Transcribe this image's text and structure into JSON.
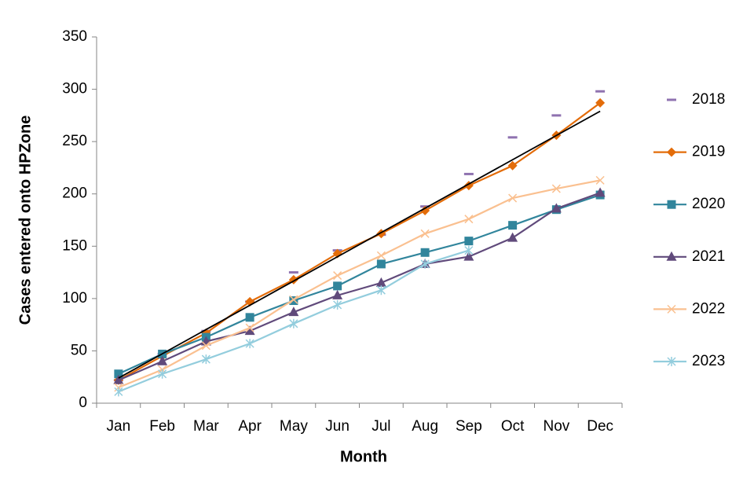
{
  "chart_data": {
    "type": "line",
    "x_label": "Month",
    "y_label": "Cases entered onto HPZone",
    "categories": [
      "Jan",
      "Feb",
      "Mar",
      "Apr",
      "May",
      "Jun",
      "Jul",
      "Aug",
      "Sep",
      "Oct",
      "Nov",
      "Dec"
    ],
    "ylim": [
      0,
      350
    ],
    "yticks": [
      0,
      50,
      100,
      150,
      200,
      250,
      300,
      350
    ],
    "legend": "right",
    "series": [
      {
        "name": "2018",
        "color": "#8f72b0",
        "marker": "dash",
        "show_line": false,
        "values": [
          22,
          47,
          69,
          97,
          125,
          146,
          161,
          188,
          219,
          254,
          275,
          298
        ]
      },
      {
        "name": "2019",
        "color": "#e36c09",
        "marker": "diamond",
        "values": [
          22,
          45,
          67,
          97,
          118,
          143,
          162,
          184,
          208,
          227,
          256,
          287
        ]
      },
      {
        "name": "2020",
        "color": "#31859c",
        "marker": "square",
        "values": [
          28,
          47,
          63,
          82,
          98,
          112,
          133,
          144,
          155,
          170,
          185,
          199
        ]
      },
      {
        "name": "2021",
        "color": "#604a7b",
        "marker": "triangle",
        "values": [
          22,
          40,
          59,
          69,
          87,
          103,
          115,
          133,
          140,
          158,
          186,
          201
        ]
      },
      {
        "name": "2022",
        "color": "#fac090",
        "marker": "x",
        "values": [
          15,
          32,
          55,
          72,
          99,
          122,
          141,
          162,
          176,
          196,
          205,
          213
        ]
      },
      {
        "name": "2023",
        "color": "#93cddd",
        "marker": "star",
        "values": [
          11,
          28,
          42,
          57,
          76,
          94,
          108,
          133,
          146,
          null,
          null,
          null
        ]
      }
    ],
    "trendline": {
      "color": "#000000",
      "values": [
        24,
        279
      ]
    }
  }
}
